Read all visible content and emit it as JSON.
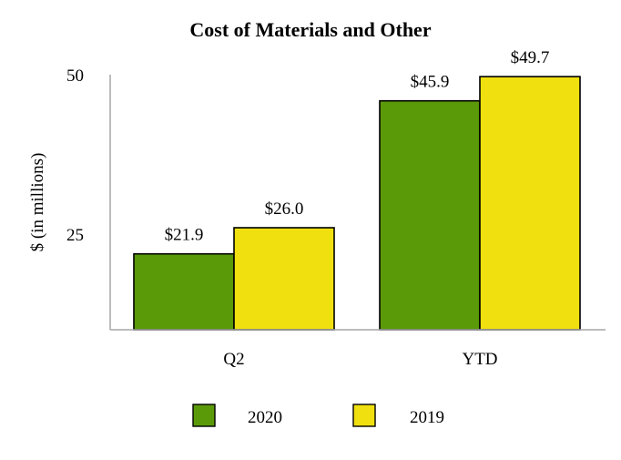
{
  "chart_data": {
    "type": "bar",
    "title": "Cost of Materials and Other",
    "xlabel": "",
    "ylabel": "$ (in millions)",
    "categories": [
      "Q2",
      "YTD"
    ],
    "series": [
      {
        "name": "2020",
        "values": [
          21.9,
          45.9
        ],
        "labels": [
          "$21.9",
          "$45.9"
        ],
        "color": "#5a9a08"
      },
      {
        "name": "2019",
        "values": [
          26.0,
          49.7
        ],
        "labels": [
          "$26.0",
          "$49.7"
        ],
        "color": "#f0e010"
      }
    ],
    "yticks": [
      25,
      50
    ],
    "ytick_labels": [
      "25",
      "50"
    ],
    "ylim": [
      10,
      50
    ],
    "grid": false,
    "legend_position": "bottom"
  }
}
